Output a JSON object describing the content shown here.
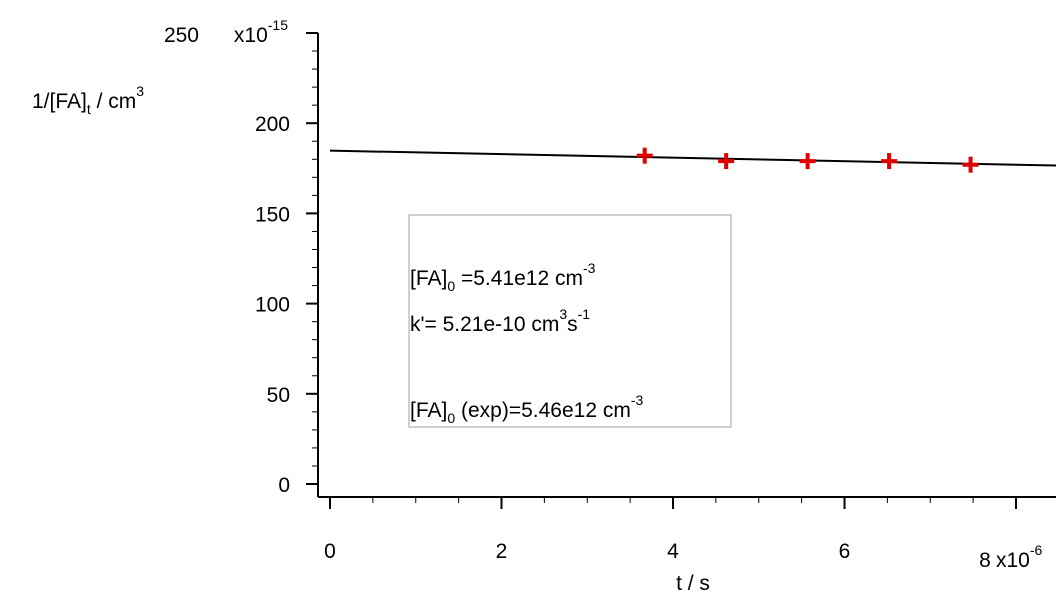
{
  "chart_data": {
    "type": "scatter",
    "title": "",
    "x_axis": {
      "label": "t / s",
      "range": [
        -2e-07,
        8.5e-06
      ],
      "ticks": [
        0,
        2e-06,
        4e-06,
        6e-06,
        8e-06
      ],
      "tick_labels": [
        "0",
        "2",
        "4",
        "6",
        "8"
      ],
      "multiplier_label": "x10",
      "multiplier_exponent": "-6"
    },
    "y_axis": {
      "label_main": "1/[FA]",
      "label_sub": "t",
      "label_rest": " / cm",
      "label_sup": "3",
      "range": [
        -8e-15,
        2.5e-13
      ],
      "ticks": [
        0,
        5e-14,
        1e-13,
        1.5e-13,
        2e-13,
        2.5e-13
      ],
      "tick_labels": [
        "0",
        "50",
        "100",
        "150",
        "200",
        "250"
      ],
      "multiplier_label": "x10",
      "multiplier_exponent": "-15"
    },
    "series": [
      {
        "type": "scatter",
        "marker": "cross",
        "color": "#e00000",
        "x": [
          3.67e-06,
          4.62e-06,
          5.57e-06,
          6.52e-06,
          7.47e-06
        ],
        "y": [
          1.82e-13,
          1.79e-13,
          1.79e-13,
          1.79e-13,
          1.77e-13
        ]
      },
      {
        "type": "line",
        "color": "#000000",
        "x": [
          0,
          8.5e-06
        ],
        "y": [
          1.848e-13,
          1.765e-13
        ]
      }
    ],
    "legend": {
      "placement": "center",
      "lines": [
        {
          "pre": "[FA]",
          "sub": "0",
          "mid": " =5.41e12  cm",
          "sup": "-3",
          "post": "",
          "sup2": ""
        },
        {
          "pre": "k'= 5.21e-10 cm",
          "sub": "",
          "mid": "",
          "sup": "3",
          "post": "s",
          "sup2": "-1"
        },
        {
          "pre": "",
          "sub": "",
          "mid": "",
          "sup": "",
          "post": "",
          "sup2": ""
        },
        {
          "pre": "[FA]",
          "sub": "0",
          "mid": " (exp)=5.46e12 cm",
          "sup": "-3",
          "post": "",
          "sup2": ""
        }
      ]
    },
    "grid": false
  }
}
